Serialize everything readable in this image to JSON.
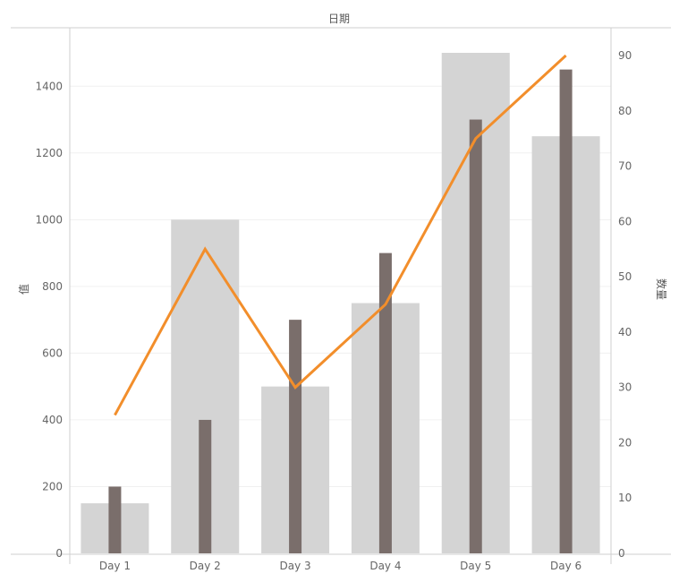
{
  "chart_data": {
    "type": "bar",
    "title": "日期",
    "categories": [
      "Day 1",
      "Day 2",
      "Day 3",
      "Day 4",
      "Day 5",
      "Day 6"
    ],
    "ylabel_left": "值",
    "ylabel_right": "数量",
    "ylim_left": [
      0,
      1500
    ],
    "yticks_left": [
      0,
      200,
      400,
      600,
      800,
      1000,
      1200,
      1400
    ],
    "ylim_right": [
      0,
      90
    ],
    "yticks_right": [
      0,
      10,
      20,
      30,
      40,
      50,
      60,
      70,
      80,
      90
    ],
    "series": [
      {
        "kind": "bar-wide",
        "values": [
          150,
          1000,
          500,
          750,
          1500,
          1250
        ],
        "color": "#d4d4d4",
        "axis": "left"
      },
      {
        "kind": "bar-narrow",
        "values": [
          200,
          400,
          700,
          900,
          1300,
          1450
        ],
        "color": "#7a6e6b",
        "axis": "left"
      },
      {
        "kind": "line",
        "values": [
          25,
          55,
          30,
          45,
          75,
          90
        ],
        "color": "#f28e2b",
        "axis": "right"
      }
    ],
    "grid": true
  }
}
